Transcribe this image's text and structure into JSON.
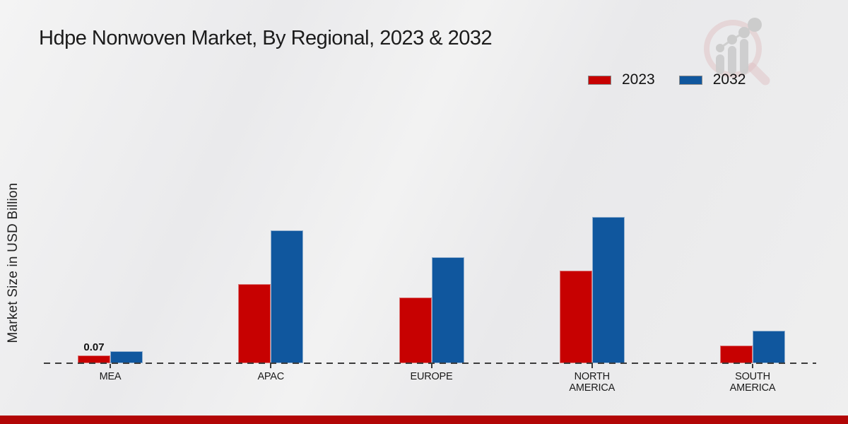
{
  "title": "Hdpe Nonwoven Market, By Regional, 2023 & 2032",
  "y_axis_label": "Market Size in USD Billion",
  "legend": {
    "items": [
      {
        "label": "2023",
        "color": "#c70101"
      },
      {
        "label": "2032",
        "color": "#10579e"
      }
    ]
  },
  "colors": {
    "series_2023": "#c70101",
    "series_2032": "#10579e",
    "footer_bar": "#b20606",
    "baseline": "#3c3c3c"
  },
  "chart_data": {
    "type": "bar",
    "categories": [
      "MEA",
      "APAC",
      "EUROPE",
      "NORTH AMERICA",
      "SOUTH AMERICA"
    ],
    "series": [
      {
        "name": "2023",
        "color": "#c70101",
        "values": [
          0.07,
          0.71,
          0.59,
          0.83,
          0.16
        ]
      },
      {
        "name": "2032",
        "color": "#10579e",
        "values": [
          0.11,
          1.19,
          0.95,
          1.31,
          0.29
        ]
      }
    ],
    "title": "Hdpe Nonwoven Market, By Regional, 2023 & 2032",
    "xlabel": "",
    "ylabel": "Market Size in USD Billion",
    "ylim": [
      0,
      1.45
    ],
    "grid": false,
    "legend_position": "top-right",
    "baseline_style": "dashed",
    "data_labels": [
      {
        "series": "2023",
        "category": "MEA",
        "text": "0.07"
      }
    ]
  }
}
